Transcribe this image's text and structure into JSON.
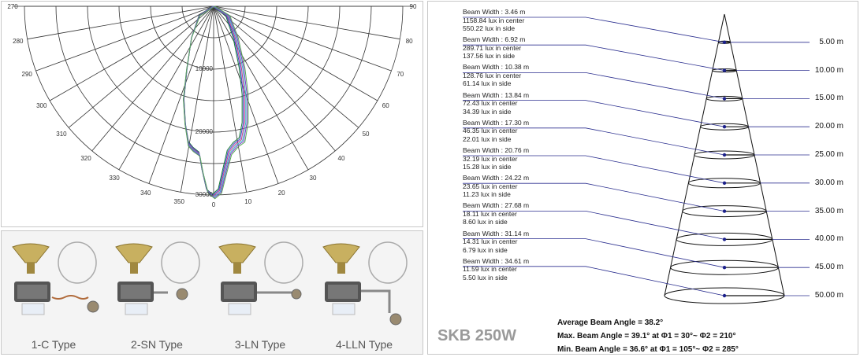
{
  "polar": {
    "top_angles": [
      "270",
      "90"
    ],
    "left_angles": [
      "280",
      "290",
      "300",
      "310",
      "320",
      "330",
      "340",
      "350"
    ],
    "right_angles": [
      "80",
      "70",
      "60",
      "50",
      "40",
      "30",
      "20",
      "10"
    ],
    "bottom_angle": "0",
    "rings": [
      "10000",
      "20000",
      "30000"
    ]
  },
  "lamp_types": [
    {
      "label": "1-C Type"
    },
    {
      "label": "2-SN Type"
    },
    {
      "label": "3-LN Type"
    },
    {
      "label": "4-LLN Type"
    }
  ],
  "beam": {
    "rows": [
      {
        "width": "Beam Width : 3.46 m",
        "center": "1158.84 lux in center",
        "side": "550.22 lux in side",
        "distance": "5.00 m"
      },
      {
        "width": "Beam Width : 6.92 m",
        "center": "289.71 lux in center",
        "side": "137.56 lux in side",
        "distance": "10.00 m"
      },
      {
        "width": "Beam Width : 10.38 m",
        "center": "128.76 lux in center",
        "side": "61.14 lux in side",
        "distance": "15.00 m"
      },
      {
        "width": "Beam Width : 13.84 m",
        "center": "72.43 lux in center",
        "side": "34.39 lux in side",
        "distance": "20.00 m"
      },
      {
        "width": "Beam Width : 17.30 m",
        "center": "46.35 lux in center",
        "side": "22.01 lux in side",
        "distance": "25.00 m"
      },
      {
        "width": "Beam Width : 20.76 m",
        "center": "32.19 lux in center",
        "side": "15.28 lux in side",
        "distance": "30.00 m"
      },
      {
        "width": "Beam Width : 24.22 m",
        "center": "23.65 lux in center",
        "side": "11.23 lux in side",
        "distance": "35.00 m"
      },
      {
        "width": "Beam Width : 27.68 m",
        "center": "18.11 lux in center",
        "side": "8.60 lux in side",
        "distance": "40.00 m"
      },
      {
        "width": "Beam Width : 31.14 m",
        "center": "14.31 lux in center",
        "side": "6.79 lux in side",
        "distance": "45.00 m"
      },
      {
        "width": "Beam Width : 34.61 m",
        "center": "11.59 lux in center",
        "side": "5.50 lux in side",
        "distance": "50.00 m"
      }
    ],
    "title": "SKB 250W",
    "summary": [
      "Average Beam Angle = 38.2°",
      "Max. Beam Angle = 39.1° at Φ1 = 30°~ Φ2 = 210°",
      "Min. Beam Angle = 36.6° at Φ1 = 105°~ Φ2 = 285°"
    ]
  },
  "colors": {
    "leader_line": "#2b2f8f",
    "node": "#1a1f8a",
    "curve_colors": [
      "#1a7a3a",
      "#3a46c8",
      "#c83a8a",
      "#3ab8c8",
      "#7a3ac8",
      "#58a858"
    ]
  }
}
